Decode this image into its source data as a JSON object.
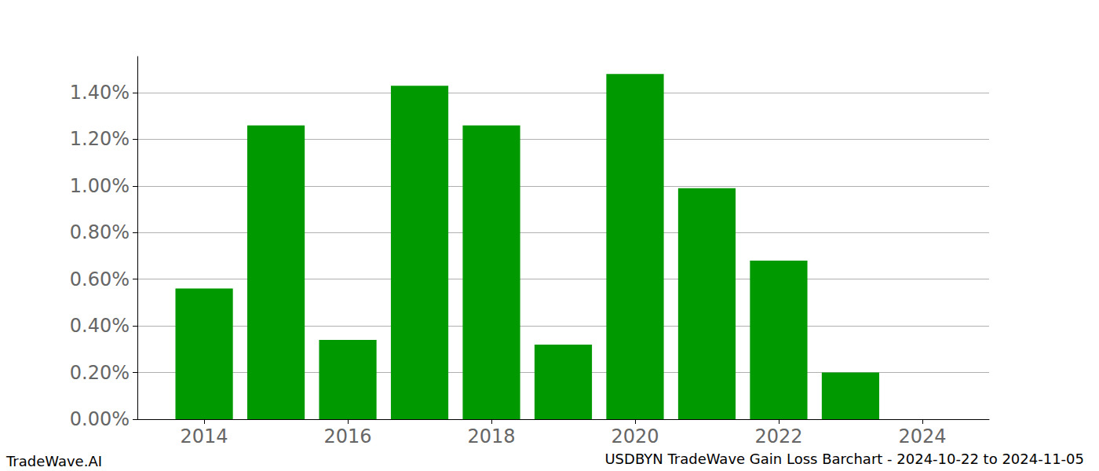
{
  "chart_data": {
    "type": "bar",
    "title": "USDBYN TradeWave Gain Loss Barchart - 2024-10-22 to 2024-11-05",
    "annotations": [
      "TradeWave.AI"
    ],
    "x": [
      2014,
      2015,
      2016,
      2017,
      2018,
      2019,
      2020,
      2021,
      2022,
      2023,
      2024
    ],
    "values": [
      0.56,
      1.26,
      0.34,
      1.43,
      1.26,
      0.32,
      1.48,
      0.99,
      0.68,
      0.2,
      null
    ],
    "color": "#009900",
    "xlim": [
      2013.07,
      2024.93
    ],
    "xticks": [
      2014,
      2016,
      2018,
      2020,
      2022,
      2024
    ],
    "ylim": [
      0,
      1.555
    ],
    "yticks": [
      {
        "value": 0,
        "label": "0.00%"
      },
      {
        "value": 0.2,
        "label": "0.20%"
      },
      {
        "value": 0.4,
        "label": "0.40%"
      },
      {
        "value": 0.6,
        "label": "0.60%"
      },
      {
        "value": 0.8,
        "label": "0.80%"
      },
      {
        "value": 1.0,
        "label": "1.00%"
      },
      {
        "value": 1.2,
        "label": "1.20%"
      },
      {
        "value": 1.4,
        "label": "1.40%"
      }
    ],
    "grid": true
  }
}
